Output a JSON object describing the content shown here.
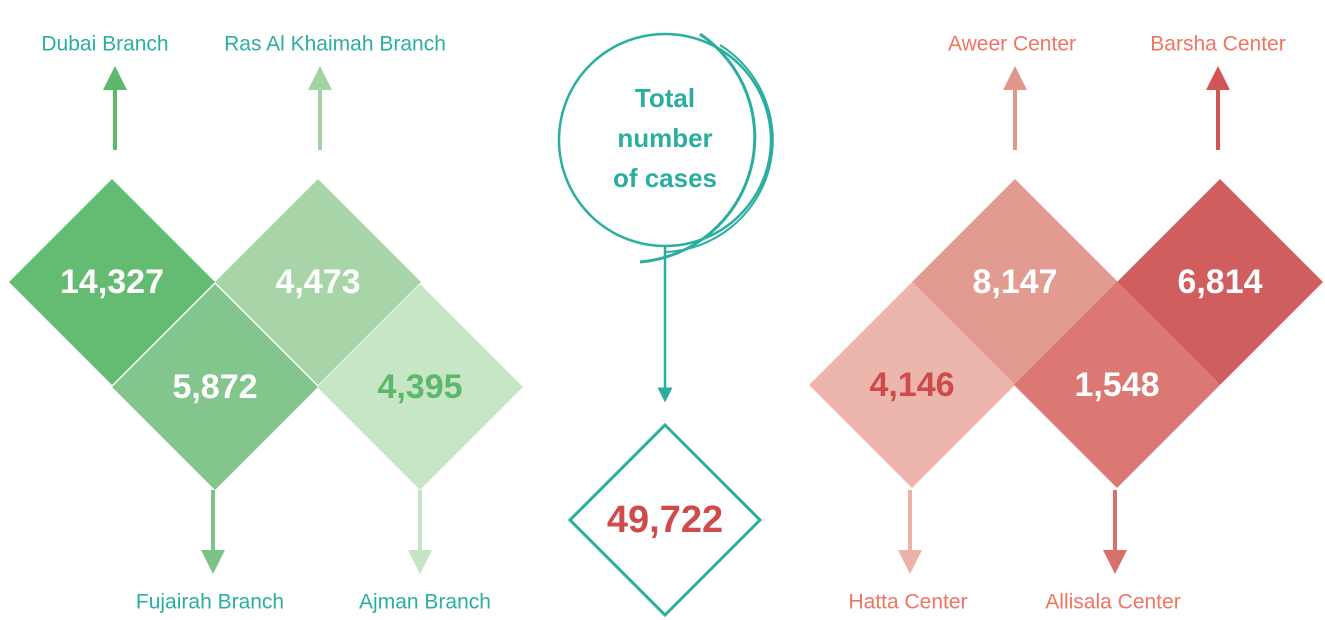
{
  "total_label": [
    "Total",
    "number",
    "of cases"
  ],
  "total": "49,722",
  "branches": [
    {
      "name": "Dubai Branch",
      "value": "14,327"
    },
    {
      "name": "Ras Al Khaimah Branch",
      "value": "4,473"
    },
    {
      "name": "Fujairah Branch",
      "value": "5,872"
    },
    {
      "name": "Ajman Branch",
      "value": "4,395"
    }
  ],
  "centers": [
    {
      "name": "Aweer Center",
      "value": "8,147"
    },
    {
      "name": "Barsha Center",
      "value": "6,814"
    },
    {
      "name": "Hatta Center",
      "value": "4,146"
    },
    {
      "name": "Allisala Center",
      "value": "1,548"
    }
  ]
}
